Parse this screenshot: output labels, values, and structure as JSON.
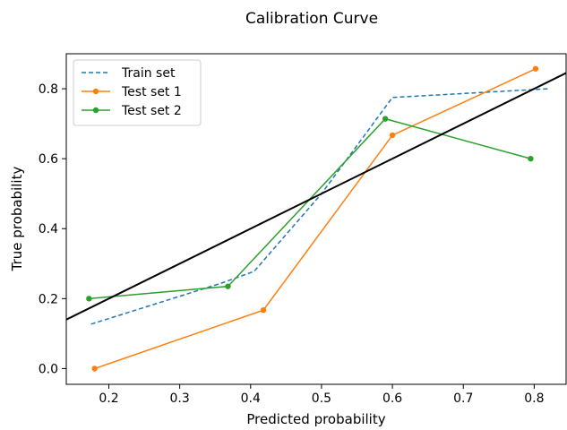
{
  "chart_data": {
    "type": "line",
    "title": "Calibration Curve",
    "xlabel": "Predicted probability",
    "ylabel": "True probability",
    "xlim": [
      0.14,
      0.845
    ],
    "ylim": [
      -0.045,
      0.9
    ],
    "xticks": [
      0.2,
      0.3,
      0.4,
      0.5,
      0.6,
      0.7,
      0.8
    ],
    "xtick_labels": [
      "0.2",
      "0.3",
      "0.4",
      "0.5",
      "0.6",
      "0.7",
      "0.8"
    ],
    "yticks": [
      0.0,
      0.2,
      0.4,
      0.6,
      0.8
    ],
    "ytick_labels": [
      "0.0",
      "0.2",
      "0.4",
      "0.6",
      "0.8"
    ],
    "legend_position": "top-left",
    "grid": false,
    "series": [
      {
        "name": "Train set",
        "color": "#1f77b4",
        "style": "dashed",
        "marker": "none",
        "x": [
          0.175,
          0.36,
          0.405,
          0.5,
          0.6,
          0.82
        ],
        "y": [
          0.127,
          0.245,
          0.278,
          0.5,
          0.775,
          0.8
        ]
      },
      {
        "name": "Test set 1",
        "color": "#ff7f0e",
        "style": "solid",
        "marker": "circle",
        "x": [
          0.18,
          0.418,
          0.6,
          0.802
        ],
        "y": [
          0.0,
          0.167,
          0.667,
          0.857
        ]
      },
      {
        "name": "Test set 2",
        "color": "#2ca02c",
        "style": "solid",
        "marker": "circle",
        "x": [
          0.172,
          0.368,
          0.59,
          0.795
        ],
        "y": [
          0.2,
          0.235,
          0.714,
          0.6
        ]
      },
      {
        "name": "",
        "color": "#000000",
        "style": "solid",
        "marker": "none",
        "in_legend": false,
        "x": [
          0.0,
          1.0
        ],
        "y": [
          0.0,
          1.0
        ]
      }
    ]
  }
}
